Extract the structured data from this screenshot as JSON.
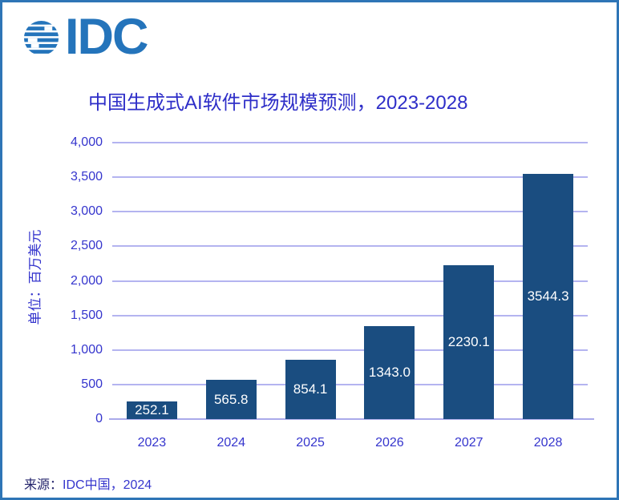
{
  "logo": {
    "text": "IDC",
    "color": "#2474bb"
  },
  "chart_data": {
    "type": "bar",
    "title": "中国生成式AI软件市场规模预测，2023-2028",
    "categories": [
      "2023",
      "2024",
      "2025",
      "2026",
      "2027",
      "2028"
    ],
    "values": [
      252.1,
      565.8,
      854.1,
      1343.0,
      2230.1,
      3544.3
    ],
    "value_labels": [
      "252.1",
      "565.8",
      "854.1",
      "1343.0",
      "2230.1",
      "3544.3"
    ],
    "xlabel": "",
    "ylabel": "单位：百万美元",
    "ylim": [
      0,
      4000
    ],
    "ytick_step": 500,
    "grid": true,
    "legend": false,
    "bar_color": "#1a4d80",
    "gridline_color": "#b4b4f0",
    "axis_text_color": "#3535cd",
    "title_color": "#2e2ec8",
    "data_labels": {
      "position": "inside-center",
      "color": "#ffffff"
    }
  },
  "footer": {
    "source_label": "来源：",
    "source_value": "IDC中国，2024"
  }
}
